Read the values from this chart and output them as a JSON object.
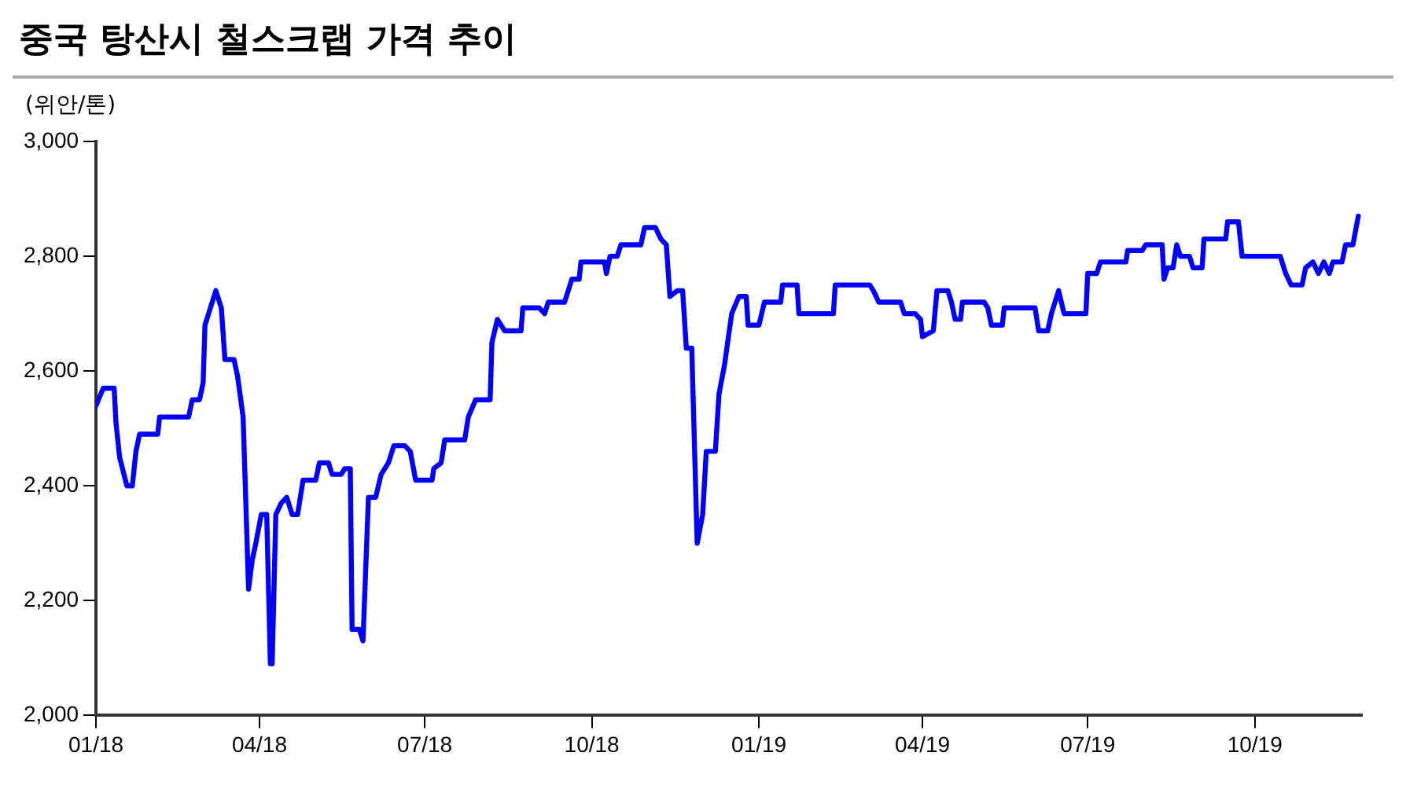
{
  "chart_data": {
    "type": "line",
    "title": "중국 탕산시 철스크랩 가격 추이",
    "ylabel": "(위안/톤)",
    "x": [
      "2018-01-01",
      "2018-01-05",
      "2018-01-11",
      "2018-01-12",
      "2018-01-14",
      "2018-01-18",
      "2018-01-21",
      "2018-01-23",
      "2018-01-25",
      "2018-02-04",
      "2018-02-05",
      "2018-02-21",
      "2018-02-23",
      "2018-02-27",
      "2018-03-01",
      "2018-03-02",
      "2018-03-05",
      "2018-03-08",
      "2018-03-11",
      "2018-03-13",
      "2018-03-18",
      "2018-03-20",
      "2018-03-23",
      "2018-03-26",
      "2018-03-28",
      "2018-03-30",
      "2018-04-02",
      "2018-04-05",
      "2018-04-07",
      "2018-04-08",
      "2018-04-10",
      "2018-04-13",
      "2018-04-16",
      "2018-04-19",
      "2018-04-22",
      "2018-04-25",
      "2018-05-02",
      "2018-05-04",
      "2018-05-09",
      "2018-05-11",
      "2018-05-16",
      "2018-05-18",
      "2018-05-21",
      "2018-05-22",
      "2018-05-26",
      "2018-05-28",
      "2018-05-31",
      "2018-06-04",
      "2018-06-07",
      "2018-06-11",
      "2018-06-14",
      "2018-06-20",
      "2018-06-23",
      "2018-06-26",
      "2018-07-05",
      "2018-07-06",
      "2018-07-10",
      "2018-07-12",
      "2018-07-23",
      "2018-07-25",
      "2018-07-29",
      "2018-08-06",
      "2018-08-07",
      "2018-08-10",
      "2018-08-14",
      "2018-08-23",
      "2018-08-24",
      "2018-09-02",
      "2018-09-05",
      "2018-09-07",
      "2018-09-16",
      "2018-09-18",
      "2018-09-20",
      "2018-09-24",
      "2018-09-25",
      "2018-10-08",
      "2018-10-09",
      "2018-10-11",
      "2018-10-15",
      "2018-10-17",
      "2018-10-28",
      "2018-10-30",
      "2018-11-05",
      "2018-11-08",
      "2018-11-11",
      "2018-11-13",
      "2018-11-17",
      "2018-11-20",
      "2018-11-22",
      "2018-11-25",
      "2018-11-28",
      "2018-12-01",
      "2018-12-03",
      "2018-12-08",
      "2018-12-10",
      "2018-12-13",
      "2018-12-17",
      "2018-12-21",
      "2018-12-25",
      "2018-12-26",
      "2019-01-01",
      "2019-01-04",
      "2019-01-13",
      "2019-01-14",
      "2019-01-22",
      "2019-01-23",
      "2019-02-11",
      "2019-02-12",
      "2019-03-03",
      "2019-03-05",
      "2019-03-08",
      "2019-03-20",
      "2019-03-22",
      "2019-03-28",
      "2019-03-31",
      "2019-04-01",
      "2019-04-07",
      "2019-04-09",
      "2019-04-15",
      "2019-04-17",
      "2019-04-19",
      "2019-04-22",
      "2019-04-23",
      "2019-05-05",
      "2019-05-07",
      "2019-05-09",
      "2019-05-15",
      "2019-05-16",
      "2019-06-02",
      "2019-06-04",
      "2019-06-09",
      "2019-06-11",
      "2019-06-15",
      "2019-06-18",
      "2019-06-30",
      "2019-07-01",
      "2019-07-06",
      "2019-07-08",
      "2019-07-22",
      "2019-07-23",
      "2019-07-31",
      "2019-08-02",
      "2019-08-11",
      "2019-08-12",
      "2019-08-14",
      "2019-08-17",
      "2019-08-19",
      "2019-08-21",
      "2019-08-26",
      "2019-08-28",
      "2019-09-02",
      "2019-09-03",
      "2019-09-15",
      "2019-09-16",
      "2019-09-22",
      "2019-09-24",
      "2019-10-15",
      "2019-10-18",
      "2019-10-21",
      "2019-10-27",
      "2019-10-29",
      "2019-11-02",
      "2019-11-05",
      "2019-11-08",
      "2019-11-11",
      "2019-11-13",
      "2019-11-18",
      "2019-11-20",
      "2019-11-24",
      "2019-11-27"
    ],
    "series": [
      {
        "color": "#0000ff",
        "values": [
          2540,
          2570,
          2570,
          2510,
          2450,
          2400,
          2400,
          2460,
          2490,
          2490,
          2520,
          2520,
          2550,
          2550,
          2580,
          2680,
          2710,
          2740,
          2710,
          2620,
          2620,
          2590,
          2520,
          2220,
          2270,
          2300,
          2350,
          2350,
          2090,
          2090,
          2350,
          2370,
          2380,
          2350,
          2350,
          2410,
          2410,
          2440,
          2440,
          2420,
          2420,
          2430,
          2430,
          2150,
          2150,
          2130,
          2380,
          2380,
          2420,
          2440,
          2470,
          2470,
          2460,
          2410,
          2410,
          2430,
          2440,
          2480,
          2480,
          2520,
          2550,
          2550,
          2650,
          2690,
          2670,
          2670,
          2710,
          2710,
          2700,
          2720,
          2720,
          2740,
          2760,
          2760,
          2790,
          2790,
          2770,
          2800,
          2800,
          2820,
          2820,
          2850,
          2850,
          2830,
          2820,
          2730,
          2740,
          2740,
          2640,
          2640,
          2300,
          2350,
          2460,
          2460,
          2560,
          2610,
          2700,
          2730,
          2730,
          2680,
          2680,
          2720,
          2720,
          2750,
          2750,
          2700,
          2700,
          2750,
          2750,
          2740,
          2720,
          2720,
          2700,
          2700,
          2690,
          2660,
          2670,
          2740,
          2740,
          2720,
          2690,
          2690,
          2720,
          2720,
          2710,
          2680,
          2680,
          2710,
          2710,
          2670,
          2670,
          2700,
          2740,
          2700,
          2700,
          2770,
          2770,
          2790,
          2790,
          2810,
          2810,
          2820,
          2820,
          2760,
          2780,
          2780,
          2820,
          2800,
          2800,
          2780,
          2780,
          2830,
          2830,
          2860,
          2860,
          2800,
          2800,
          2770,
          2750,
          2750,
          2780,
          2790,
          2770,
          2790,
          2770,
          2790,
          2790,
          2820,
          2820,
          2870
        ]
      }
    ],
    "xlim": [
      "2018-01-01",
      "2019-11-29"
    ],
    "xticks": [
      {
        "value": "2018-01-01",
        "label": "01/18"
      },
      {
        "value": "2018-04-01",
        "label": "04/18"
      },
      {
        "value": "2018-07-01",
        "label": "07/18"
      },
      {
        "value": "2018-10-01",
        "label": "10/18"
      },
      {
        "value": "2019-01-01",
        "label": "01/19"
      },
      {
        "value": "2019-04-01",
        "label": "04/19"
      },
      {
        "value": "2019-07-01",
        "label": "07/19"
      },
      {
        "value": "2019-10-01",
        "label": "10/19"
      }
    ],
    "ylim": [
      2000,
      3000
    ],
    "yticks": [
      {
        "value": 2000,
        "label": "2,000"
      },
      {
        "value": 2200,
        "label": "2,200"
      },
      {
        "value": 2400,
        "label": "2,400"
      },
      {
        "value": 2600,
        "label": "2,600"
      },
      {
        "value": 2800,
        "label": "2,800"
      },
      {
        "value": 3000,
        "label": "3,000"
      }
    ],
    "grid": false,
    "legend": false,
    "marker": "none",
    "line_style": "solid"
  }
}
